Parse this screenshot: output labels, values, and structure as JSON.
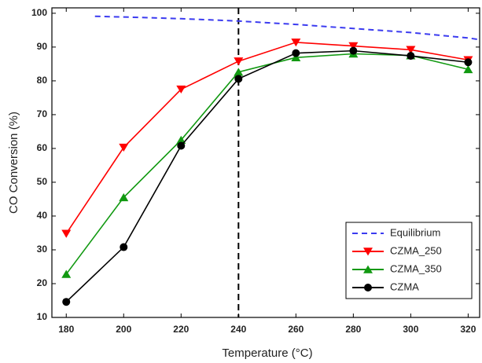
{
  "chart_data": {
    "type": "line",
    "x_label": "Temperature (°C)",
    "y_label": "CO Conversion (%)",
    "xlim": [
      175,
      324
    ],
    "ylim": [
      10,
      101.6
    ],
    "xticks": [
      180,
      200,
      220,
      240,
      260,
      280,
      300,
      320
    ],
    "yticks": [
      10,
      20,
      30,
      40,
      50,
      60,
      70,
      80,
      90,
      100
    ],
    "vline": 240,
    "legend": "lower right",
    "series": [
      {
        "name": "Equilibrium",
        "color": "#3b3bf0",
        "dashed": true,
        "marker": "none",
        "x": [
          190,
          200,
          220,
          240,
          260,
          280,
          300,
          320,
          324
        ],
        "values": [
          99.1,
          98.9,
          98.4,
          97.7,
          96.7,
          95.5,
          94.3,
          92.7,
          92.2
        ]
      },
      {
        "name": "CZMA_250",
        "color": "#ff0000",
        "marker": "down",
        "x": [
          180,
          200,
          220,
          240,
          260,
          280,
          300,
          320
        ],
        "values": [
          34.8,
          60.3,
          77.5,
          85.8,
          91.4,
          90.3,
          89.2,
          86.2
        ]
      },
      {
        "name": "CZMA_350",
        "color": "#119911",
        "marker": "up",
        "x": [
          180,
          200,
          220,
          240,
          260,
          280,
          300,
          320
        ],
        "values": [
          22.8,
          45.5,
          62.5,
          82.6,
          86.9,
          88.0,
          87.5,
          83.4
        ]
      },
      {
        "name": "CZMA",
        "color": "#000000",
        "marker": "circle",
        "x": [
          180,
          200,
          220,
          240,
          260,
          280,
          300,
          320
        ],
        "values": [
          14.6,
          30.8,
          60.8,
          80.6,
          88.2,
          88.9,
          87.4,
          85.5
        ]
      }
    ]
  }
}
